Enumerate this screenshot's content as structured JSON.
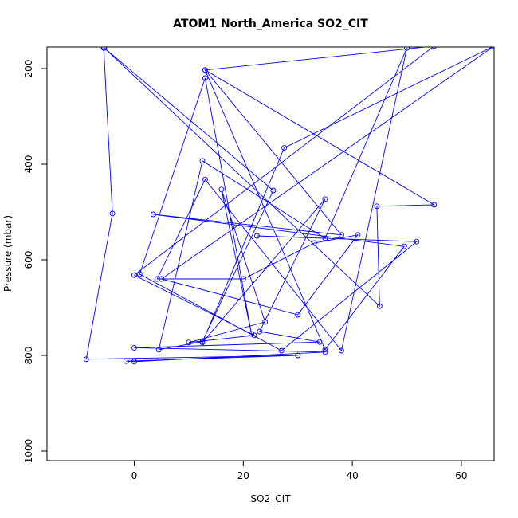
{
  "chart_data": {
    "type": "line",
    "title": "ATOM1 North_America SO2_CIT",
    "xlabel": "SO2_CIT",
    "ylabel": "Pressure (mbar)",
    "xlim": [
      -16,
      66
    ],
    "ylim": [
      1020,
      155
    ],
    "y_reversed": true,
    "xticks": [
      0,
      20,
      40,
      60
    ],
    "yticks": [
      200,
      400,
      600,
      800,
      1000
    ],
    "grid": false,
    "legend": "none",
    "color": "#0000ff",
    "series": [
      {
        "x": [
          -5.6,
          -4,
          -8.8,
          30,
          -1.5,
          0,
          35,
          0,
          34,
          23,
          35,
          12.5,
          27.5,
          66,
          5,
          30,
          41,
          33,
          20,
          4.2,
          13,
          38,
          50,
          35,
          12.5,
          4.5,
          12.5,
          25.5,
          -5.5,
          45,
          44.5,
          55,
          13,
          35,
          49.5,
          3.5,
          38,
          13,
          55,
          0,
          22,
          10,
          24,
          16,
          21.5,
          13,
          1,
          27,
          51.8,
          22.5
        ],
        "y": [
          157,
          503,
          808,
          800,
          812,
          813,
          793,
          784,
          772,
          750,
          473,
          773,
          366,
          153,
          640,
          715,
          548,
          565,
          640,
          640,
          432,
          790,
          157,
          555,
          393,
          788,
          771,
          455,
          157,
          697,
          488,
          485,
          203,
          788,
          572,
          505,
          548,
          203,
          153,
          632,
          758,
          773,
          730,
          453,
          755,
          220,
          630,
          790,
          562,
          550
        ]
      }
    ]
  }
}
